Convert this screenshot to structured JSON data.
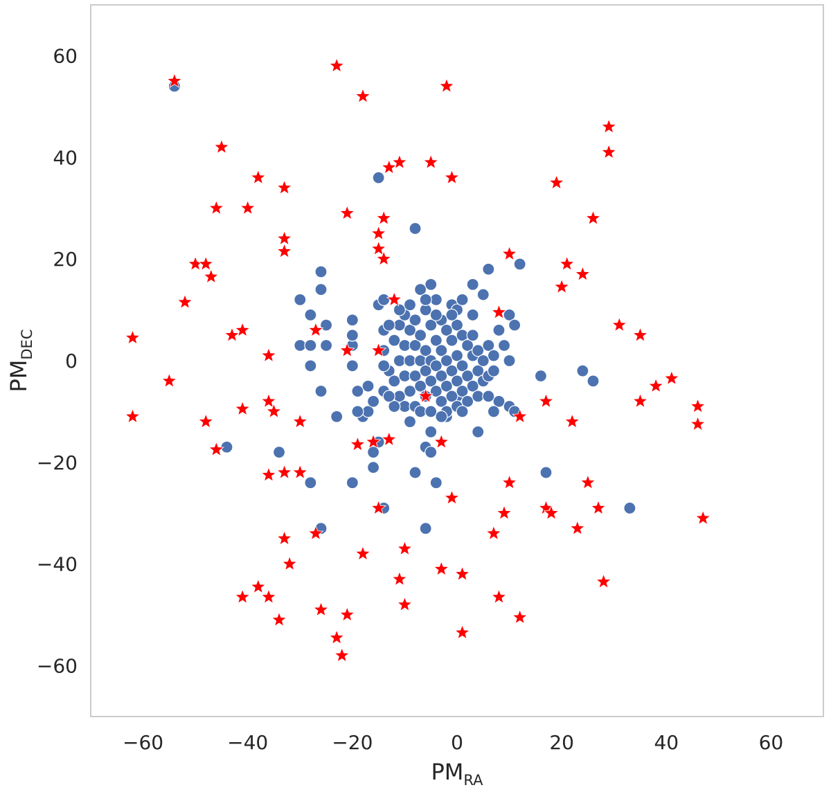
{
  "chart_data": {
    "type": "scatter",
    "xlim": [
      -70,
      70
    ],
    "ylim": [
      -70,
      70
    ],
    "grid": false,
    "xlabel": {
      "main": "PM",
      "sub": "RA"
    },
    "ylabel": {
      "main": "PM",
      "sub": "DEC"
    },
    "xticks": [
      -60,
      -40,
      -20,
      0,
      20,
      40,
      60
    ],
    "yticks": [
      -60,
      -40,
      -20,
      0,
      20,
      40,
      60
    ],
    "tick_labels_x": [
      "−60",
      "−40",
      "−20",
      "0",
      "20",
      "40",
      "60"
    ],
    "tick_labels_y": [
      "−60",
      "−40",
      "−20",
      "0",
      "20",
      "40",
      "60"
    ],
    "colors": {
      "circles": "#4c72b0",
      "stars": "#ff0000"
    },
    "series": [
      {
        "marker": "circle",
        "color": "#4c72b0",
        "points": [
          [
            -54,
            54
          ],
          [
            -15,
            36
          ],
          [
            -8,
            26
          ],
          [
            -26,
            17.5
          ],
          [
            -26,
            14
          ],
          [
            -30,
            12
          ],
          [
            -28,
            9
          ],
          [
            -30,
            3
          ],
          [
            -28,
            3
          ],
          [
            -25,
            3
          ],
          [
            -25,
            7
          ],
          [
            -28,
            -1
          ],
          [
            -20,
            3
          ],
          [
            -20,
            5
          ],
          [
            -26,
            -6
          ],
          [
            -23,
            -11
          ],
          [
            -18,
            -11
          ],
          [
            -17,
            -10
          ],
          [
            -17,
            -5
          ],
          [
            -19,
            -6
          ],
          [
            -20,
            -1
          ],
          [
            -20,
            5
          ],
          [
            -20,
            8
          ],
          [
            -15,
            11
          ],
          [
            -14,
            12
          ],
          [
            -14,
            6
          ],
          [
            -16,
            -8
          ],
          [
            -19,
            -10
          ],
          [
            -14,
            -6
          ],
          [
            -15,
            -16
          ],
          [
            -16,
            -18
          ],
          [
            -16,
            -21
          ],
          [
            -20,
            -24
          ],
          [
            -14,
            -29
          ],
          [
            -8,
            -22
          ],
          [
            -4,
            -24
          ],
          [
            -6,
            -33
          ],
          [
            -26,
            -33
          ],
          [
            -28,
            -24
          ],
          [
            -34,
            -18
          ],
          [
            -44,
            -17
          ],
          [
            -6,
            -17
          ],
          [
            -5,
            -18
          ],
          [
            -5,
            -14
          ],
          [
            -2,
            -11
          ],
          [
            0,
            -7
          ],
          [
            4,
            -14
          ],
          [
            5,
            13
          ],
          [
            3,
            15
          ],
          [
            6,
            18
          ],
          [
            -5,
            15
          ],
          [
            -7,
            14
          ],
          [
            -1,
            11
          ],
          [
            0,
            10
          ],
          [
            3,
            9
          ],
          [
            1,
            12
          ],
          [
            8,
            6
          ],
          [
            10,
            9
          ],
          [
            12,
            19
          ],
          [
            11,
            7
          ],
          [
            9,
            3
          ],
          [
            10,
            0
          ],
          [
            8,
            -8
          ],
          [
            7,
            -10
          ],
          [
            10,
            -9
          ],
          [
            11,
            -10
          ],
          [
            17,
            -22
          ],
          [
            16,
            -3
          ],
          [
            24,
            -2
          ],
          [
            26,
            -4
          ],
          [
            33,
            -29
          ],
          [
            -14,
            2
          ],
          [
            -13,
            -2
          ],
          [
            -12,
            4
          ],
          [
            -12,
            -4
          ],
          [
            -11,
            7
          ],
          [
            -11,
            0
          ],
          [
            -11,
            -7
          ],
          [
            -10,
            9
          ],
          [
            -10,
            3
          ],
          [
            -10,
            -3
          ],
          [
            -10,
            -9
          ],
          [
            -9,
            6
          ],
          [
            -9,
            0
          ],
          [
            -9,
            -6
          ],
          [
            -9,
            11
          ],
          [
            -8,
            3
          ],
          [
            -8,
            -3
          ],
          [
            -8,
            -9
          ],
          [
            -8,
            8
          ],
          [
            -7,
            5
          ],
          [
            -7,
            0
          ],
          [
            -7,
            -5
          ],
          [
            -7,
            -10
          ],
          [
            -6,
            10
          ],
          [
            -6,
            2
          ],
          [
            -6,
            -2
          ],
          [
            -6,
            -7
          ],
          [
            -5,
            7
          ],
          [
            -5,
            0
          ],
          [
            -5,
            -4
          ],
          [
            -5,
            -10
          ],
          [
            -4,
            12
          ],
          [
            -4,
            4
          ],
          [
            -4,
            -1
          ],
          [
            -4,
            -6
          ],
          [
            -3,
            8
          ],
          [
            -3,
            2
          ],
          [
            -3,
            -3
          ],
          [
            -3,
            -8
          ],
          [
            -2,
            6
          ],
          [
            -2,
            0
          ],
          [
            -2,
            -5
          ],
          [
            -2,
            -10
          ],
          [
            -1,
            4
          ],
          [
            -1,
            -2
          ],
          [
            -1,
            -7
          ],
          [
            0,
            7
          ],
          [
            0,
            1
          ],
          [
            0,
            -4
          ],
          [
            0,
            -9
          ],
          [
            1,
            5
          ],
          [
            1,
            -1
          ],
          [
            1,
            -6
          ],
          [
            2,
            3
          ],
          [
            2,
            -3
          ],
          [
            2,
            -8
          ],
          [
            3,
            1
          ],
          [
            3,
            -5
          ],
          [
            4,
            2
          ],
          [
            4,
            -2
          ],
          [
            5,
            0
          ],
          [
            5,
            -4
          ],
          [
            6,
            3
          ],
          [
            6,
            -3
          ],
          [
            7,
            1
          ],
          [
            7,
            -2
          ],
          [
            -13,
            7
          ],
          [
            -12,
            -9
          ],
          [
            -11,
            10
          ],
          [
            -13,
            -7
          ],
          [
            -6,
            12
          ],
          [
            -4,
            9
          ],
          [
            -3,
            -11
          ],
          [
            1,
            -10
          ],
          [
            4,
            -7
          ],
          [
            6,
            -7
          ],
          [
            -14,
            -1
          ],
          [
            3,
            5
          ],
          [
            -1,
            9
          ],
          [
            -9,
            -12
          ]
        ]
      },
      {
        "marker": "star",
        "color": "#ff0000",
        "points": [
          [
            -54,
            55
          ],
          [
            -23,
            58
          ],
          [
            -18,
            52
          ],
          [
            -2,
            54
          ],
          [
            -45,
            42
          ],
          [
            29,
            46
          ],
          [
            29,
            41
          ],
          [
            -38,
            36
          ],
          [
            -33,
            34
          ],
          [
            -15,
            25
          ],
          [
            -13,
            38
          ],
          [
            -11,
            39
          ],
          [
            -5,
            39
          ],
          [
            -1,
            36
          ],
          [
            19,
            35
          ],
          [
            -46,
            30
          ],
          [
            -40,
            30
          ],
          [
            -21,
            29
          ],
          [
            -14,
            28
          ],
          [
            26,
            28
          ],
          [
            -33,
            24
          ],
          [
            -33,
            21.5
          ],
          [
            -15,
            22
          ],
          [
            -14,
            20
          ],
          [
            -50,
            19
          ],
          [
            -48,
            19
          ],
          [
            -47,
            16.5
          ],
          [
            -52,
            11.5
          ],
          [
            10,
            21
          ],
          [
            21,
            19
          ],
          [
            24,
            17
          ],
          [
            20,
            14.5
          ],
          [
            -12,
            12
          ],
          [
            8,
            9.5
          ],
          [
            -27,
            6
          ],
          [
            -43,
            5
          ],
          [
            -41,
            6
          ],
          [
            -36,
            1
          ],
          [
            -62,
            4.5
          ],
          [
            -21,
            2
          ],
          [
            -15,
            2
          ],
          [
            31,
            7
          ],
          [
            35,
            5
          ],
          [
            -55,
            -4
          ],
          [
            -62,
            -11
          ],
          [
            -48,
            -12
          ],
          [
            -46,
            -17.5
          ],
          [
            -41,
            -9.5
          ],
          [
            -36,
            -8
          ],
          [
            -35,
            -10
          ],
          [
            -30,
            -12
          ],
          [
            -6,
            -7
          ],
          [
            -3,
            -16
          ],
          [
            -19,
            -16.5
          ],
          [
            -16,
            -16
          ],
          [
            -13,
            -15.5
          ],
          [
            17,
            -8
          ],
          [
            12,
            -11
          ],
          [
            22,
            -12
          ],
          [
            35,
            -8
          ],
          [
            38,
            -5
          ],
          [
            41,
            -3.5
          ],
          [
            46,
            -9
          ],
          [
            46,
            -12.5
          ],
          [
            47,
            -31
          ],
          [
            -36,
            -22.5
          ],
          [
            -33,
            -22
          ],
          [
            -30,
            -22
          ],
          [
            -27,
            -34
          ],
          [
            -33,
            -35
          ],
          [
            -32,
            -40
          ],
          [
            -18,
            -38
          ],
          [
            -15,
            -29
          ],
          [
            -10,
            -37
          ],
          [
            -3,
            -41
          ],
          [
            -1,
            -27
          ],
          [
            1,
            -42
          ],
          [
            9,
            -30
          ],
          [
            10,
            -24
          ],
          [
            7,
            -34
          ],
          [
            17,
            -29
          ],
          [
            18,
            -30
          ],
          [
            25,
            -24
          ],
          [
            27,
            -29
          ],
          [
            23,
            -33
          ],
          [
            28,
            -43.5
          ],
          [
            -11,
            -43
          ],
          [
            -10,
            -48
          ],
          [
            -26,
            -49
          ],
          [
            -21,
            -50
          ],
          [
            -41,
            -46.5
          ],
          [
            -38,
            -44.5
          ],
          [
            -36,
            -46.5
          ],
          [
            -34,
            -51
          ],
          [
            -23,
            -54.5
          ],
          [
            -22,
            -58
          ],
          [
            1,
            -53.5
          ],
          [
            8,
            -46.5
          ],
          [
            12,
            -50.5
          ]
        ]
      }
    ]
  }
}
